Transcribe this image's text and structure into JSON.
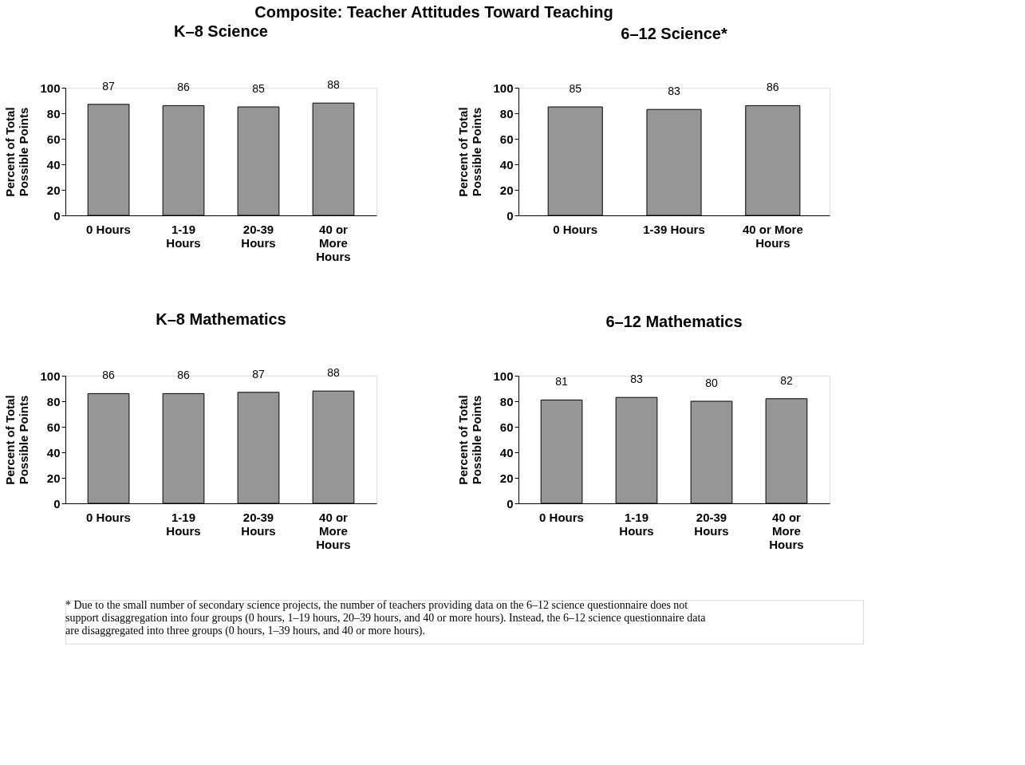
{
  "chart_data": [
    {
      "type": "other",
      "title": "Composite: Teacher Attitudes Toward Teaching",
      "annotations": [
        "*  Due to the small number of secondary science projects, the number of teachers providing data on the 6–12 science questionnaire does not support disaggregation into four groups (0 hours, 1–19 hours, 20–39 hours, and 40 or more hours).  Instead, the 6–12 science questionnaire data are disaggregated into three groups (0 hours, 1–39 hours, and 40 or more hours)."
      ]
    },
    {
      "type": "bar",
      "title": "K–8 Science",
      "ylabel": "Percent of Total Possible Points",
      "categories": [
        "0 Hours",
        "1-19 Hours",
        "20-39 Hours",
        "40 or More Hours"
      ],
      "values": [
        87,
        86,
        85,
        88
      ],
      "color": "#969696",
      "ylim": [
        0,
        100
      ],
      "yticks": [
        0,
        20,
        40,
        60,
        80,
        100
      ],
      "data_labels": true,
      "grid": false
    },
    {
      "type": "bar",
      "title": "6–12 Science*",
      "ylabel": "Percent of Total Possible Points",
      "categories": [
        "0 Hours",
        "1-39 Hours",
        "40 or More Hours"
      ],
      "values": [
        85,
        83,
        86
      ],
      "color": "#969696",
      "ylim": [
        0,
        100
      ],
      "yticks": [
        0,
        20,
        40,
        60,
        80,
        100
      ],
      "data_labels": true,
      "grid": false
    },
    {
      "type": "bar",
      "title": "K–8 Mathematics",
      "ylabel": "Percent of Total Possible Points",
      "categories": [
        "0 Hours",
        "1-19 Hours",
        "20-39 Hours",
        "40 or More Hours"
      ],
      "values": [
        86,
        86,
        87,
        88
      ],
      "color": "#969696",
      "ylim": [
        0,
        100
      ],
      "yticks": [
        0,
        20,
        40,
        60,
        80,
        100
      ],
      "data_labels": true,
      "grid": false
    },
    {
      "type": "bar",
      "title": "6–12 Mathematics",
      "ylabel": "Percent of Total Possible Points",
      "categories": [
        "0 Hours",
        "1-19 Hours",
        "20-39 Hours",
        "40 or More Hours"
      ],
      "values": [
        81,
        83,
        80,
        82
      ],
      "color": "#969696",
      "ylim": [
        0,
        100
      ],
      "yticks": [
        0,
        20,
        40,
        60,
        80,
        100
      ],
      "data_labels": true,
      "grid": false
    }
  ]
}
